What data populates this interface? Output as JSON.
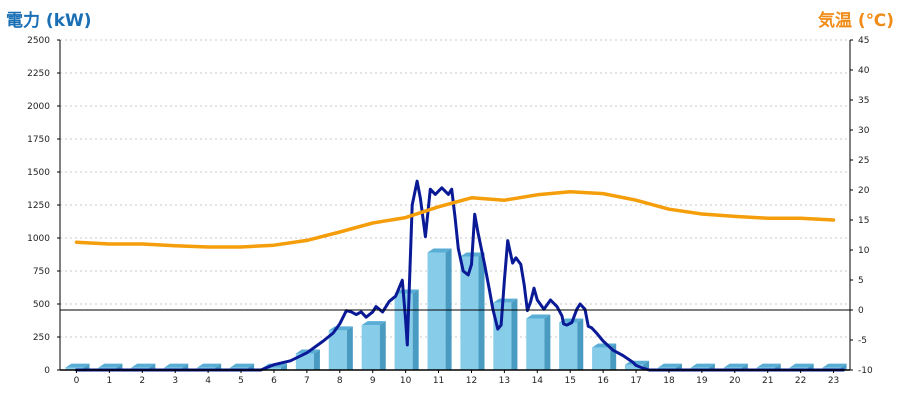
{
  "chart_data": {
    "type": "bar+line",
    "left_axis": {
      "label": "電力 (kW)",
      "ticks": [
        0,
        250,
        500,
        750,
        1000,
        1250,
        1500,
        1750,
        2000,
        2250,
        2500
      ],
      "range": [
        0,
        2500
      ]
    },
    "right_axis": {
      "label": "気温 (℃)",
      "ticks": [
        -10,
        -5,
        0,
        5,
        10,
        15,
        20,
        25,
        30,
        35,
        40,
        45
      ],
      "range": [
        -10,
        45
      ]
    },
    "x_ticks": [
      "0",
      "1",
      "2",
      "3",
      "4",
      "5",
      "6",
      "7",
      "8",
      "9",
      "10",
      "11",
      "12",
      "13",
      "14",
      "15",
      "16",
      "17",
      "18",
      "19",
      "20",
      "21",
      "22",
      "23"
    ],
    "colors": {
      "bar_front": "#87cdea",
      "bar_side": "#4a9bc2",
      "bar_top": "#5aaed6",
      "power_line": "#0a1a96",
      "temperature_line": "#f59e0b",
      "grid": "#c8c8c8",
      "title_left": "#1a6fb5",
      "title_right": "#f08c1a"
    },
    "grid": true,
    "series": [
      {
        "type": "bar",
        "axis": "left",
        "values": [
          0,
          0,
          0,
          0,
          0,
          0,
          0,
          125,
          300,
          340,
          580,
          890,
          860,
          510,
          390,
          360,
          170,
          40,
          0,
          0,
          0,
          0,
          0,
          0
        ]
      },
      {
        "type": "line",
        "axis": "left",
        "values": [
          [
            0,
            0
          ],
          [
            1,
            0
          ],
          [
            2,
            0
          ],
          [
            3,
            0
          ],
          [
            4,
            0
          ],
          [
            5,
            0
          ],
          [
            5.6,
            0
          ],
          [
            6,
            40
          ],
          [
            6.5,
            70
          ],
          [
            7,
            130
          ],
          [
            7.5,
            220
          ],
          [
            7.8,
            280
          ],
          [
            8,
            350
          ],
          [
            8.2,
            450
          ],
          [
            8.35,
            440
          ],
          [
            8.5,
            420
          ],
          [
            8.65,
            440
          ],
          [
            8.8,
            400
          ],
          [
            9,
            440
          ],
          [
            9.1,
            480
          ],
          [
            9.3,
            440
          ],
          [
            9.5,
            520
          ],
          [
            9.7,
            560
          ],
          [
            9.9,
            680
          ],
          [
            10,
            380
          ],
          [
            10.05,
            190
          ],
          [
            10.2,
            1250
          ],
          [
            10.35,
            1430
          ],
          [
            10.45,
            1300
          ],
          [
            10.6,
            1010
          ],
          [
            10.75,
            1370
          ],
          [
            10.9,
            1330
          ],
          [
            11.1,
            1380
          ],
          [
            11.3,
            1330
          ],
          [
            11.4,
            1370
          ],
          [
            11.5,
            1160
          ],
          [
            11.6,
            920
          ],
          [
            11.75,
            750
          ],
          [
            11.9,
            720
          ],
          [
            12,
            800
          ],
          [
            12.1,
            1180
          ],
          [
            12.2,
            1040
          ],
          [
            12.3,
            920
          ],
          [
            12.4,
            800
          ],
          [
            12.55,
            600
          ],
          [
            12.65,
            460
          ],
          [
            12.8,
            310
          ],
          [
            12.9,
            340
          ],
          [
            13,
            680
          ],
          [
            13.1,
            980
          ],
          [
            13.25,
            810
          ],
          [
            13.35,
            850
          ],
          [
            13.5,
            800
          ],
          [
            13.6,
            650
          ],
          [
            13.7,
            450
          ],
          [
            13.8,
            520
          ],
          [
            13.9,
            620
          ],
          [
            14,
            530
          ],
          [
            14.2,
            460
          ],
          [
            14.4,
            530
          ],
          [
            14.6,
            480
          ],
          [
            14.75,
            410
          ],
          [
            14.8,
            350
          ],
          [
            14.9,
            340
          ],
          [
            15.05,
            360
          ],
          [
            15.2,
            460
          ],
          [
            15.3,
            500
          ],
          [
            15.45,
            460
          ],
          [
            15.55,
            330
          ],
          [
            15.65,
            320
          ],
          [
            15.8,
            280
          ],
          [
            16,
            220
          ],
          [
            16.3,
            150
          ],
          [
            16.6,
            110
          ],
          [
            16.9,
            60
          ],
          [
            17,
            35
          ],
          [
            17.2,
            15
          ],
          [
            17.4,
            0
          ],
          [
            18,
            0
          ],
          [
            19,
            0
          ],
          [
            20,
            0
          ],
          [
            21,
            0
          ],
          [
            22,
            0
          ],
          [
            23,
            0
          ],
          [
            23.3,
            0
          ]
        ]
      },
      {
        "type": "line",
        "axis": "right",
        "values": [
          [
            0,
            11.3
          ],
          [
            1,
            11
          ],
          [
            2,
            11
          ],
          [
            3,
            10.7
          ],
          [
            4,
            10.5
          ],
          [
            5,
            10.5
          ],
          [
            6,
            10.8
          ],
          [
            7,
            11.6
          ],
          [
            8,
            13
          ],
          [
            9,
            14.5
          ],
          [
            10,
            15.4
          ],
          [
            11,
            17.2
          ],
          [
            12,
            18.7
          ],
          [
            13,
            18.3
          ],
          [
            14,
            19.2
          ],
          [
            15,
            19.7
          ],
          [
            16,
            19.4
          ],
          [
            17,
            18.3
          ],
          [
            18,
            16.8
          ],
          [
            19,
            16
          ],
          [
            20,
            15.6
          ],
          [
            21,
            15.3
          ],
          [
            22,
            15.3
          ],
          [
            23,
            15
          ]
        ]
      }
    ]
  }
}
